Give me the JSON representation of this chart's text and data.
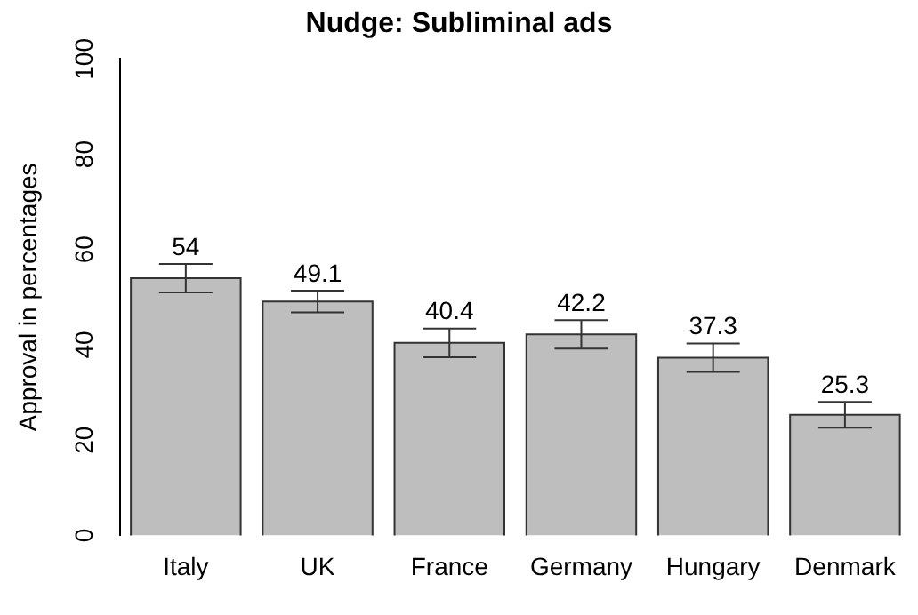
{
  "chart_data": {
    "type": "bar",
    "title": "Nudge: Subliminal ads",
    "ylabel": "Approval in percentages",
    "categories": [
      "Italy",
      "UK",
      "France",
      "Germany",
      "Hungary",
      "Denmark"
    ],
    "values": [
      54,
      49.1,
      40.4,
      42.2,
      37.3,
      25.3
    ],
    "errors": [
      3,
      2.3,
      3,
      3,
      3,
      2.7
    ],
    "color": "#bebebe",
    "ylim": [
      0,
      100
    ],
    "yticks": [
      0,
      20,
      40,
      60,
      80,
      100
    ],
    "grid": false,
    "legend": false,
    "data_labels": true
  }
}
